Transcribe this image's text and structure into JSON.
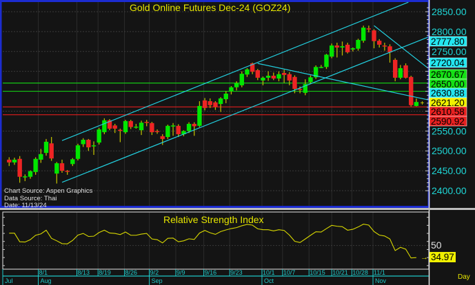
{
  "title": "Gold Online Futures Dec-24 (GOZ24)",
  "sources": {
    "chart_source": "Chart Source: Aspen Graphics",
    "data_source": "Data Source: Thai",
    "date": "Date: 11/13/24"
  },
  "colors": {
    "up": "#00e600",
    "down": "#ee2424",
    "wick": "#b8b800",
    "trendline": "#22d0e0",
    "title": "#e6e600",
    "axis": "#1fd6d6"
  },
  "chart_data": [
    {
      "type": "candlestick",
      "title": "Gold Online Futures Dec-24 (GOZ24)",
      "ylim": [
        2400,
        2850
      ],
      "y_ticks": [
        "2850.00",
        "2800.00",
        "2750.00",
        "2550.00",
        "2500.00",
        "2450.00",
        "2400.00"
      ],
      "candles": [
        [
          2478,
          2484,
          2462,
          2471
        ],
        [
          2471,
          2483,
          2465,
          2478
        ],
        [
          2480,
          2487,
          2420,
          2435
        ],
        [
          2434,
          2441,
          2424,
          2436
        ],
        [
          2435,
          2451,
          2430,
          2449
        ],
        [
          2447,
          2484,
          2440,
          2480
        ],
        [
          2478,
          2505,
          2470,
          2492
        ],
        [
          2495,
          2530,
          2488,
          2523
        ],
        [
          2519,
          2535,
          2475,
          2481
        ],
        [
          2443,
          2472,
          2418,
          2469
        ],
        [
          2469,
          2478,
          2445,
          2450
        ],
        [
          2450,
          2452,
          2440,
          2448
        ],
        [
          2467,
          2482,
          2462,
          2479
        ],
        [
          2480,
          2518,
          2476,
          2514
        ],
        [
          2517,
          2532,
          2510,
          2528
        ],
        [
          2528,
          2530,
          2500,
          2509
        ],
        [
          2512,
          2524,
          2490,
          2514
        ],
        [
          2521,
          2558,
          2516,
          2554
        ],
        [
          2547,
          2582,
          2542,
          2577
        ],
        [
          2577,
          2580,
          2552,
          2556
        ],
        [
          2564,
          2568,
          2545,
          2556
        ],
        [
          2553,
          2556,
          2522,
          2551
        ],
        [
          2547,
          2578,
          2543,
          2575
        ],
        [
          2575,
          2578,
          2555,
          2560
        ],
        [
          2561,
          2568,
          2556,
          2561
        ],
        [
          2552,
          2576,
          2540,
          2571
        ],
        [
          2573,
          2578,
          2562,
          2572
        ],
        [
          2570,
          2573,
          2540,
          2547
        ],
        [
          2550,
          2554,
          2543,
          2548
        ],
        [
          2537,
          2542,
          2515,
          2530
        ],
        [
          2535,
          2566,
          2530,
          2563
        ],
        [
          2564,
          2570,
          2538,
          2564
        ],
        [
          2563,
          2567,
          2535,
          2542
        ],
        [
          2542,
          2552,
          2537,
          2550
        ],
        [
          2550,
          2572,
          2545,
          2568
        ],
        [
          2568,
          2572,
          2538,
          2562
        ],
        [
          2563,
          2625,
          2560,
          2613
        ],
        [
          2627,
          2633,
          2602,
          2608
        ],
        [
          2625,
          2632,
          2608,
          2615
        ],
        [
          2622,
          2625,
          2603,
          2610
        ],
        [
          2618,
          2635,
          2598,
          2632
        ],
        [
          2630,
          2650,
          2620,
          2644
        ],
        [
          2650,
          2663,
          2642,
          2660
        ],
        [
          2660,
          2675,
          2652,
          2670
        ],
        [
          2665,
          2700,
          2660,
          2694
        ],
        [
          2692,
          2708,
          2686,
          2705
        ],
        [
          2720,
          2722,
          2693,
          2699
        ],
        [
          2703,
          2706,
          2678,
          2684
        ],
        [
          2677,
          2687,
          2665,
          2684
        ],
        [
          2684,
          2700,
          2676,
          2689
        ],
        [
          2689,
          2697,
          2678,
          2682
        ],
        [
          2682,
          2700,
          2675,
          2693
        ],
        [
          2696,
          2704,
          2671,
          2691
        ],
        [
          2693,
          2698,
          2665,
          2677
        ],
        [
          2686,
          2690,
          2645,
          2656
        ],
        [
          2656,
          2662,
          2645,
          2654
        ],
        [
          2646,
          2680,
          2640,
          2668
        ],
        [
          2673,
          2690,
          2668,
          2685
        ],
        [
          2685,
          2715,
          2681,
          2711
        ],
        [
          2711,
          2716,
          2708,
          2711
        ],
        [
          2711,
          2744,
          2706,
          2742
        ],
        [
          2737,
          2770,
          2733,
          2765
        ],
        [
          2765,
          2772,
          2735,
          2760
        ],
        [
          2760,
          2775,
          2740,
          2763
        ],
        [
          2767,
          2772,
          2745,
          2748
        ],
        [
          2755,
          2760,
          2750,
          2758
        ],
        [
          2757,
          2782,
          2752,
          2779
        ],
        [
          2777,
          2815,
          2772,
          2810
        ],
        [
          2808,
          2815,
          2798,
          2807
        ],
        [
          2803,
          2806,
          2758,
          2776
        ],
        [
          2777,
          2781,
          2760,
          2767
        ],
        [
          2765,
          2772,
          2752,
          2763
        ],
        [
          2763,
          2768,
          2722,
          2748
        ],
        [
          2729,
          2733,
          2675,
          2684
        ],
        [
          2684,
          2716,
          2680,
          2708
        ],
        [
          2715,
          2720,
          2682,
          2684
        ],
        [
          2686,
          2689,
          2612,
          2615
        ],
        [
          2613,
          2632,
          2612,
          2623
        ]
      ],
      "trendlines": [
        {
          "from": [
            10,
            2526
          ],
          "to": [
            75.5,
            2874
          ]
        },
        {
          "from": [
            10,
            2421
          ],
          "to": [
            79.6,
            2788
          ]
        },
        {
          "from": [
            47,
            2720
          ],
          "to": [
            79.7,
            2627
          ]
        },
        {
          "from": [
            69,
            2815
          ],
          "to": [
            79.7,
            2703
          ]
        }
      ],
      "hlines": [
        {
          "value": 2670.67,
          "color": "#14c814"
        },
        {
          "value": 2650.0,
          "color": "#14c814"
        },
        {
          "value": 2610.58,
          "color": "#e01c1c"
        },
        {
          "value": 2590.92,
          "color": "#e01c1c"
        }
      ],
      "price_tags": [
        {
          "label": "2777.80",
          "bg": "#22e6f0"
        },
        {
          "label": "2720.04",
          "bg": "#22e6f0"
        },
        {
          "label": "2670.67",
          "bg": "#14e014"
        },
        {
          "label": "2650.00",
          "bg": "#14e014"
        },
        {
          "label": "2630.88",
          "bg": "#22e6f0"
        },
        {
          "label": "2621.20",
          "bg": "#f0f000"
        },
        {
          "label": "2610.58",
          "bg": "#e82020"
        },
        {
          "label": "2590.92",
          "bg": "#e82020"
        }
      ]
    },
    {
      "type": "line",
      "title": "Relative Strength Index",
      "y_tick": "50",
      "last_value": "34.97",
      "values": [
        65.3,
        65.3,
        54.6,
        54.3,
        57.2,
        62.7,
        64.4,
        69,
        58.9,
        55.8,
        52.3,
        52,
        56.3,
        62.9,
        65,
        61.2,
        61.5,
        66.1,
        69,
        65.5,
        65,
        63.5,
        66.7,
        62.7,
        62.7,
        64.1,
        65,
        58.1,
        57.2,
        53.2,
        58.9,
        59.2,
        54.6,
        55.8,
        58.3,
        57.5,
        65.5,
        68.7,
        65.8,
        63.8,
        67.3,
        69.3,
        71,
        72.2,
        74.5,
        76.2,
        75.3,
        70.7,
        69.6,
        69.6,
        68.1,
        69.6,
        68.7,
        62.9,
        55.2,
        53.7,
        58.1,
        62.7,
        67,
        66.7,
        71,
        75,
        73.9,
        73.3,
        69,
        70.1,
        73,
        76.5,
        75.3,
        67.3,
        62.9,
        61.8,
        58.1,
        43.7,
        47.7,
        45.4,
        34.5,
        34.97
      ]
    }
  ],
  "x_axis": {
    "unit_label": "Day",
    "day_ticks": [
      {
        "label": "8/1",
        "candle": 6
      },
      {
        "label": "8/13",
        "candle": 13.3
      },
      {
        "label": "8/19",
        "candle": 17.3
      },
      {
        "label": "8/26",
        "candle": 22.3
      },
      {
        "label": "9/2",
        "candle": 27
      },
      {
        "label": "9/9",
        "candle": 32
      },
      {
        "label": "9/16",
        "candle": 37.3
      },
      {
        "label": "9/23",
        "candle": 42.2
      },
      {
        "label": "10/1",
        "candle": 48.3
      },
      {
        "label": "10/7",
        "candle": 52.2
      },
      {
        "label": "10/15",
        "candle": 57.2
      },
      {
        "label": "10/21",
        "candle": 61.5
      },
      {
        "label": "10/28",
        "candle": 65.3
      },
      {
        "label": "11/1",
        "candle": 69.3
      }
    ],
    "month_ticks": [
      {
        "label": "Jul",
        "candle": -1
      },
      {
        "label": "Aug",
        "candle": 6
      },
      {
        "label": "Sep",
        "candle": 27
      },
      {
        "label": "Oct",
        "candle": 48.3
      },
      {
        "label": "Nov",
        "candle": 69.3
      }
    ]
  }
}
